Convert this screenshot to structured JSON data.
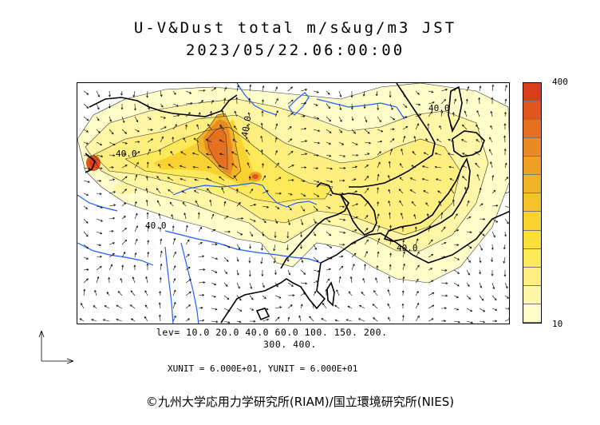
{
  "header": {
    "title": "U-V&Dust total m/s&ug/m3 JST",
    "datetime": "2023/05/22.06:00:00"
  },
  "legend": {
    "max_label": "400",
    "min_label": "10",
    "colors": [
      "#fffecb",
      "#fff6a8",
      "#ffef80",
      "#fee95a",
      "#fce03a",
      "#f8d230",
      "#f4c22a",
      "#f0b226",
      "#eda024",
      "#e98a22",
      "#e57020",
      "#e0561e",
      "#da3c1c"
    ]
  },
  "levels": {
    "line1": "lev= 10.0 20.0 40.0 60.0 100. 150. 200.",
    "line2": "300. 400."
  },
  "units": {
    "text": "XUNIT = 6.000E+01, YUNIT = 6.000E+01"
  },
  "contour_labels": [
    "40.0",
    "40.0",
    "40.0",
    "40.0",
    "40.0"
  ],
  "credit": "©九州大学応用力学研究所(RIAM)/国立環境研究所(NIES)",
  "colors": {
    "coast": "#000000",
    "river": "#1f5fff",
    "contour": "#333333"
  }
}
